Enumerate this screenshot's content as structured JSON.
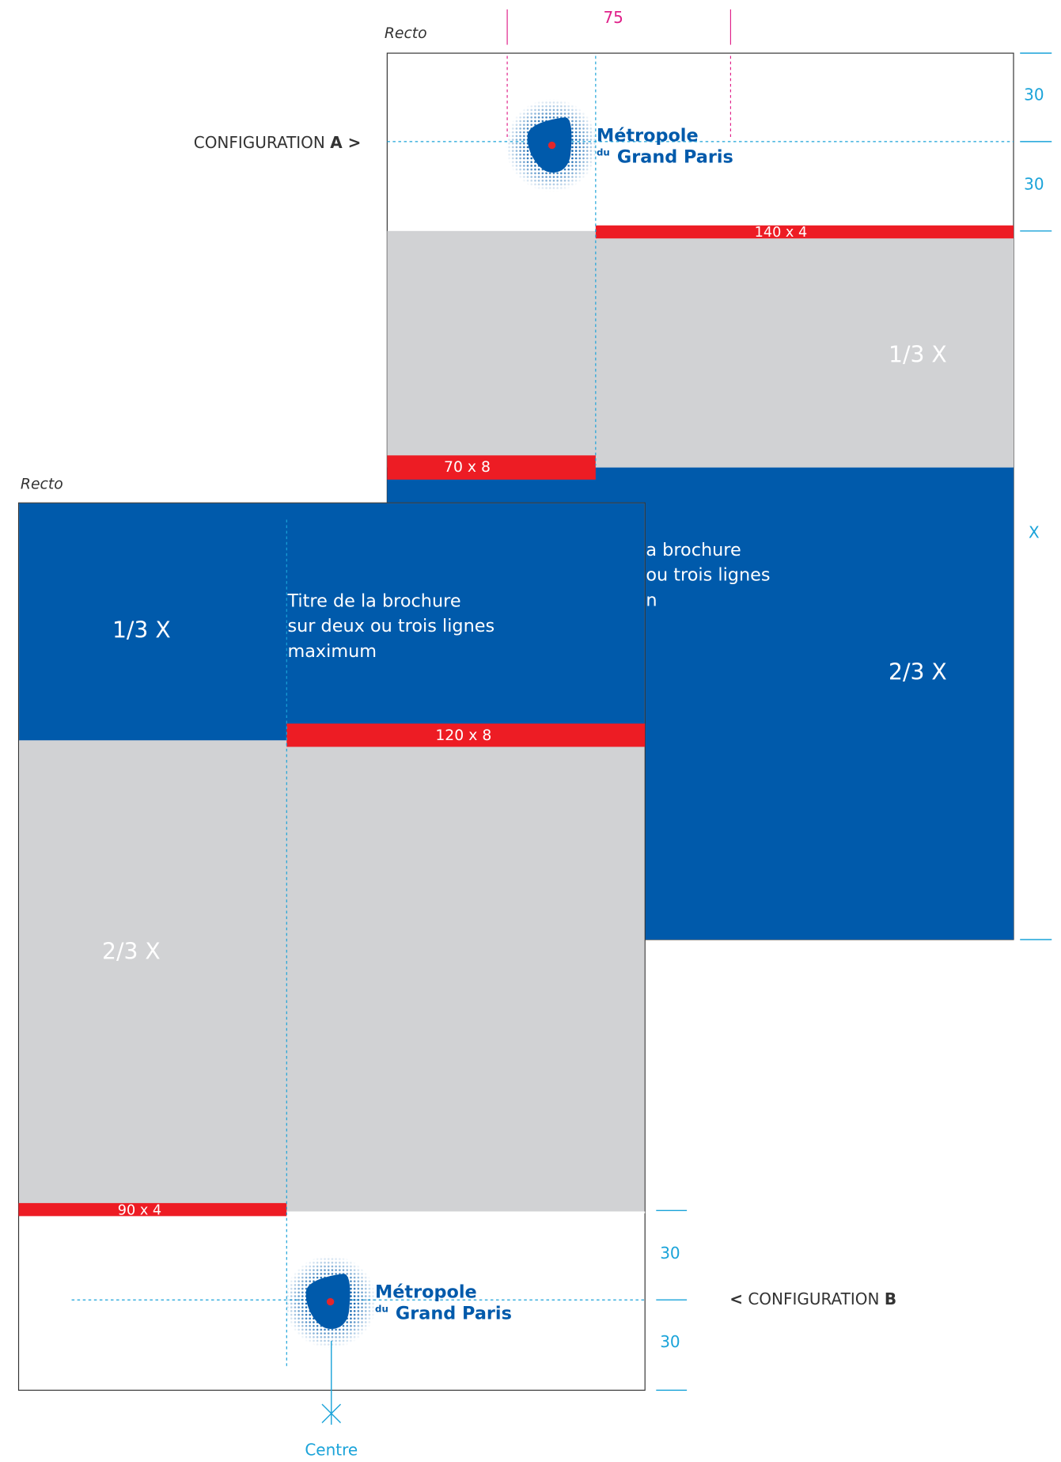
{
  "page_a": {
    "caption": "Recto",
    "config_label": "CONFIGURATION",
    "config_letter": "A >",
    "dimension_top": "75",
    "margin_top": "30",
    "margin_bottom": "30",
    "height_label": "X",
    "red_top": "140 x 4",
    "red_left": "70 x 8",
    "gray_label": "1/3 X",
    "blue_label": "2/3 X",
    "title_lines": [
      "a brochure",
      "ou trois lignes",
      "n"
    ]
  },
  "page_b": {
    "caption": "Recto",
    "config_arrow": "<",
    "config_label": "CONFIGURATION",
    "config_letter": "B",
    "blue_label": "1/3 X",
    "gray_label": "2/3 X",
    "title_lines": [
      "Titre de la brochure",
      "sur deux ou trois lignes",
      "maximum"
    ],
    "red_right": "120 x 8",
    "red_left": "90 x 4",
    "margin_top": "30",
    "margin_bottom": "30",
    "center_label": "Centre"
  },
  "logo": {
    "line1": "Métropole",
    "small": "du",
    "line2": "Grand Paris"
  }
}
